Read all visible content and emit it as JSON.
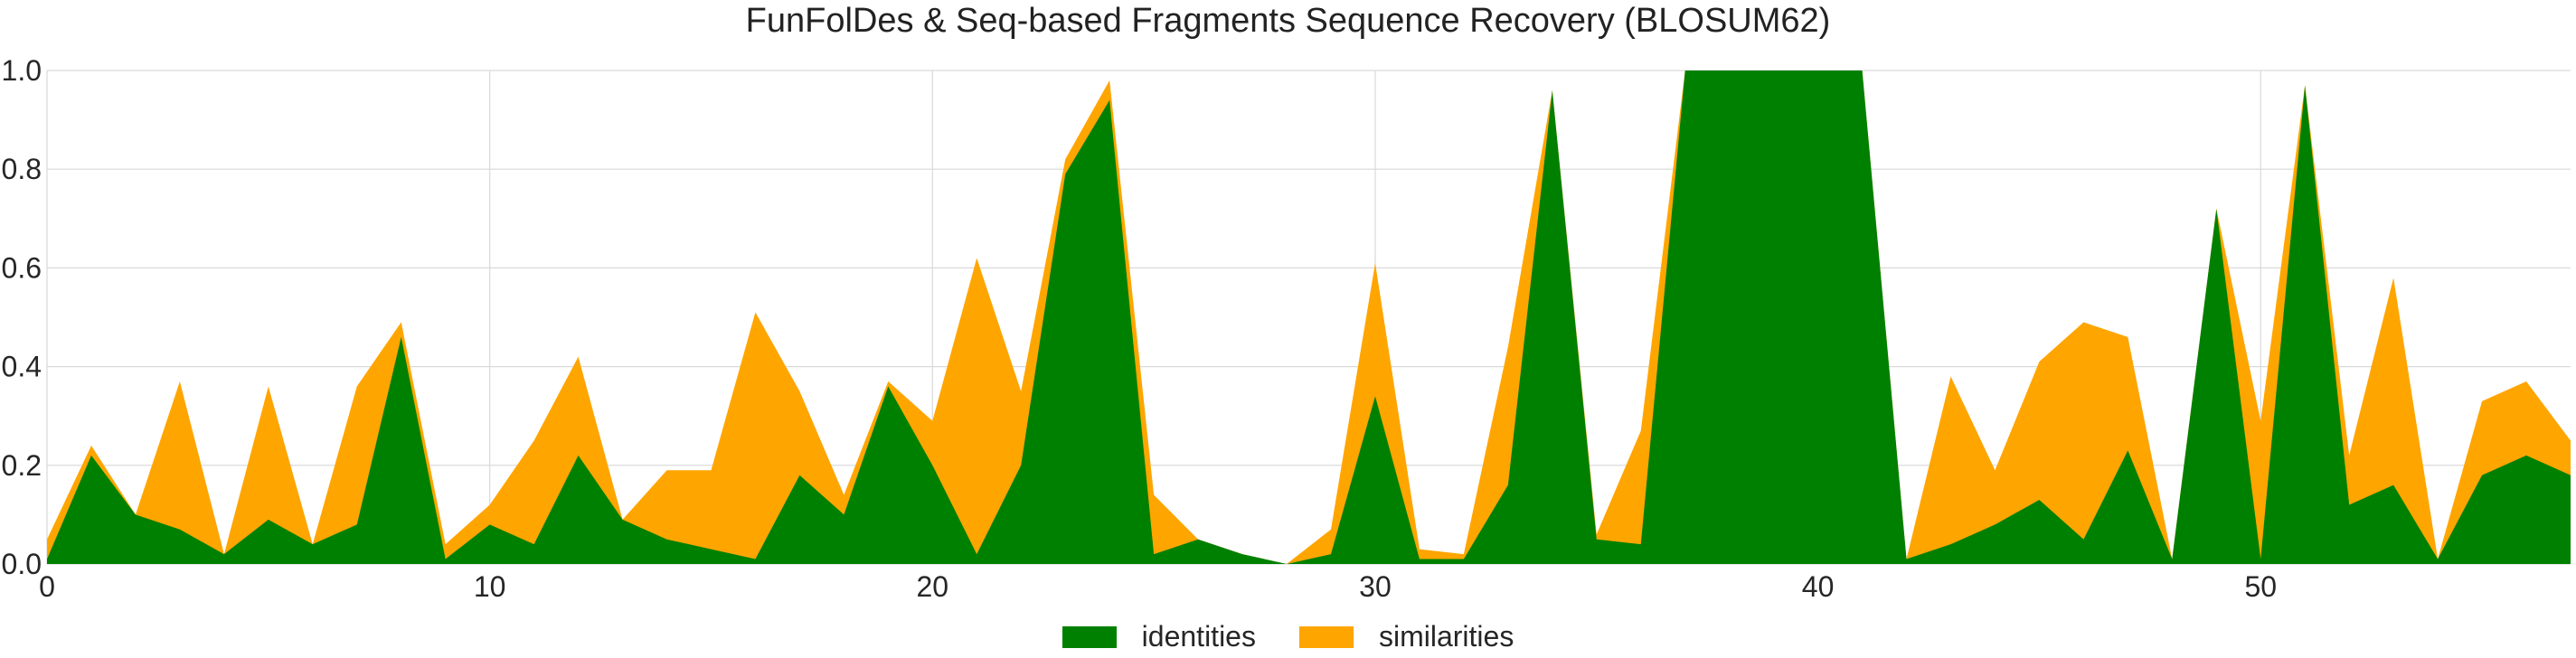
{
  "chart_data": {
    "type": "area",
    "title": "FunFolDes & Seq-based Fragments Sequence Recovery (BLOSUM62)",
    "xlabel": "",
    "ylabel": "",
    "xlim": [
      0,
      57
    ],
    "ylim": [
      0,
      1.0
    ],
    "xticks": [
      0,
      10,
      20,
      30,
      40,
      50
    ],
    "yticks": [
      0.0,
      0.2,
      0.4,
      0.6,
      0.8,
      1.0
    ],
    "grid": true,
    "legend_position": "bottom-center",
    "stacked": false,
    "x": [
      0,
      1,
      2,
      3,
      4,
      5,
      6,
      7,
      8,
      9,
      10,
      11,
      12,
      13,
      14,
      15,
      16,
      17,
      18,
      19,
      20,
      21,
      22,
      23,
      24,
      25,
      26,
      27,
      28,
      29,
      30,
      31,
      32,
      33,
      34,
      35,
      36,
      37,
      38,
      39,
      40,
      41,
      42,
      43,
      44,
      45,
      46,
      47,
      48,
      49,
      50,
      51,
      52,
      53,
      54,
      55,
      56,
      57
    ],
    "series": [
      {
        "name": "similarities",
        "color": "#ffa500",
        "values": [
          0.05,
          0.24,
          0.1,
          0.37,
          0.02,
          0.36,
          0.04,
          0.36,
          0.49,
          0.04,
          0.12,
          0.25,
          0.42,
          0.09,
          0.19,
          0.19,
          0.51,
          0.35,
          0.14,
          0.37,
          0.29,
          0.62,
          0.35,
          0.82,
          0.98,
          0.14,
          0.05,
          0.02,
          0.0,
          0.07,
          0.61,
          0.03,
          0.02,
          0.44,
          0.96,
          0.06,
          0.27,
          1.0,
          1.0,
          1.0,
          1.0,
          1.0,
          0.01,
          0.38,
          0.19,
          0.41,
          0.49,
          0.46,
          0.01,
          0.72,
          0.29,
          0.97,
          0.22,
          0.58,
          0.01,
          0.33,
          0.37,
          0.25
        ]
      },
      {
        "name": "identities",
        "color": "#008000",
        "values": [
          0.01,
          0.22,
          0.1,
          0.07,
          0.02,
          0.09,
          0.04,
          0.08,
          0.46,
          0.01,
          0.08,
          0.04,
          0.22,
          0.09,
          0.05,
          0.03,
          0.01,
          0.18,
          0.1,
          0.36,
          0.2,
          0.02,
          0.2,
          0.79,
          0.94,
          0.02,
          0.05,
          0.02,
          0.0,
          0.02,
          0.34,
          0.01,
          0.01,
          0.16,
          0.96,
          0.05,
          0.04,
          1.0,
          1.0,
          1.0,
          1.0,
          1.0,
          0.01,
          0.04,
          0.08,
          0.13,
          0.05,
          0.23,
          0.01,
          0.72,
          0.01,
          0.97,
          0.12,
          0.16,
          0.01,
          0.18,
          0.22,
          0.18
        ]
      }
    ],
    "legend": [
      {
        "label": "identities",
        "color": "#008000"
      },
      {
        "label": "similarities",
        "color": "#ffa500"
      }
    ]
  }
}
